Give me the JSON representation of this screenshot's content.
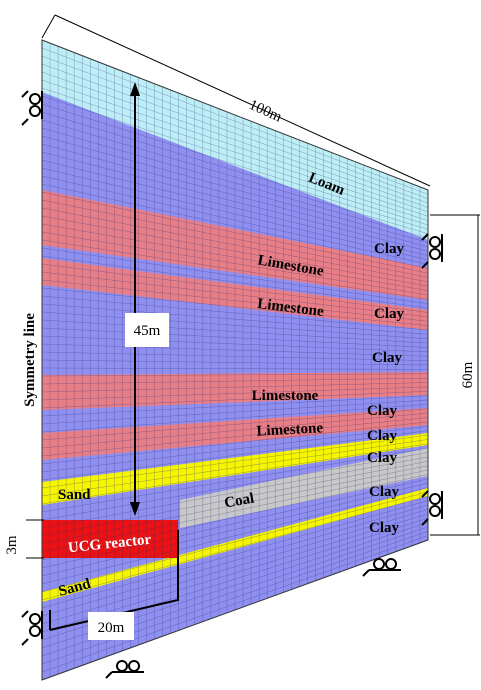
{
  "dimensions": {
    "width": "100m",
    "height": "60m",
    "depth": "45m",
    "reactor_height": "3m",
    "reactor_width": "20m"
  },
  "symmetry_line": "Symmetry line",
  "layers": {
    "loam": "Loam",
    "clay": [
      "Clay",
      "Clay",
      "Clay",
      "Clay",
      "Clay",
      "Clay",
      "Clay",
      "Clay"
    ],
    "limestone": [
      "Limestone",
      "Limestone",
      "Limestone",
      "Limestone"
    ],
    "sand": [
      "Sand",
      "Sand"
    ],
    "coal": "Coal",
    "reactor": "UCG reactor"
  }
}
